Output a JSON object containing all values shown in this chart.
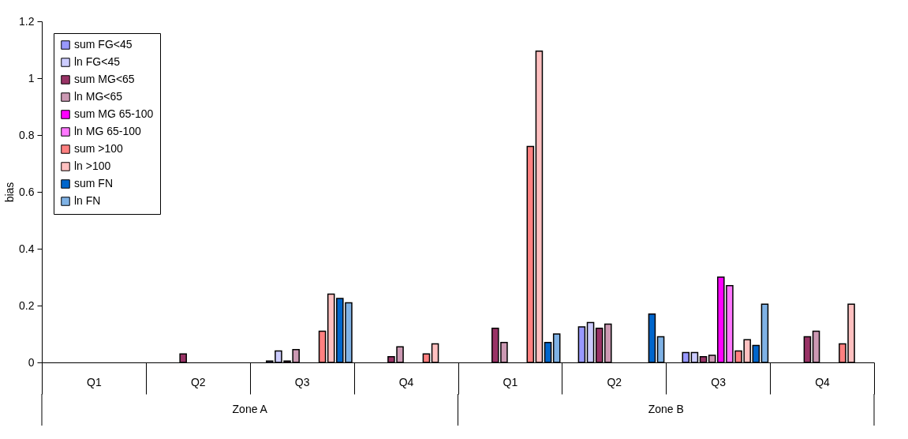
{
  "chart_data": {
    "type": "bar",
    "ylabel": "bias",
    "categories": [
      "Q1",
      "Q2",
      "Q3",
      "Q4",
      "Q1",
      "Q2",
      "Q3",
      "Q4"
    ],
    "annotations": [
      "Zone A",
      "Zone B"
    ],
    "series": [
      {
        "name": "sum FG<45",
        "color": "#9999ff",
        "values": [
          null,
          null,
          0.005,
          null,
          null,
          0.125,
          0.035,
          null
        ]
      },
      {
        "name": "ln FG<45",
        "color": "#ccccff",
        "values": [
          null,
          null,
          0.04,
          null,
          null,
          0.14,
          0.035,
          null
        ]
      },
      {
        "name": "sum MG<65",
        "color": "#993366",
        "values": [
          null,
          0.03,
          0.005,
          0.02,
          0.12,
          0.12,
          0.02,
          0.09
        ]
      },
      {
        "name": "ln MG<65",
        "color": "#cc99b3",
        "values": [
          null,
          null,
          0.045,
          0.055,
          0.07,
          0.135,
          0.025,
          0.11
        ]
      },
      {
        "name": "sum MG 65-100",
        "color": "#ff00ff",
        "values": [
          null,
          null,
          null,
          null,
          null,
          null,
          0.3,
          null
        ]
      },
      {
        "name": "ln MG 65-100",
        "color": "#ff77ff",
        "values": [
          null,
          null,
          null,
          null,
          null,
          null,
          0.27,
          null
        ]
      },
      {
        "name": "sum >100",
        "color": "#ff8080",
        "values": [
          null,
          null,
          0.11,
          0.03,
          0.76,
          null,
          0.04,
          0.065
        ]
      },
      {
        "name": "ln >100",
        "color": "#ffc0c0",
        "values": [
          null,
          null,
          0.24,
          0.065,
          1.095,
          null,
          0.08,
          0.205
        ]
      },
      {
        "name": "sum FN",
        "color": "#0066cc",
        "values": [
          null,
          null,
          0.225,
          null,
          0.07,
          0.17,
          0.06,
          null
        ]
      },
      {
        "name": "ln FN",
        "color": "#7fb2e5",
        "values": [
          null,
          null,
          0.21,
          null,
          0.1,
          0.09,
          0.205,
          null
        ]
      }
    ],
    "ylim": [
      0,
      1.2
    ],
    "yticks": [
      0,
      0.2,
      0.4,
      0.6,
      0.8,
      1,
      1.2
    ],
    "grid": false,
    "legend": "top left"
  }
}
